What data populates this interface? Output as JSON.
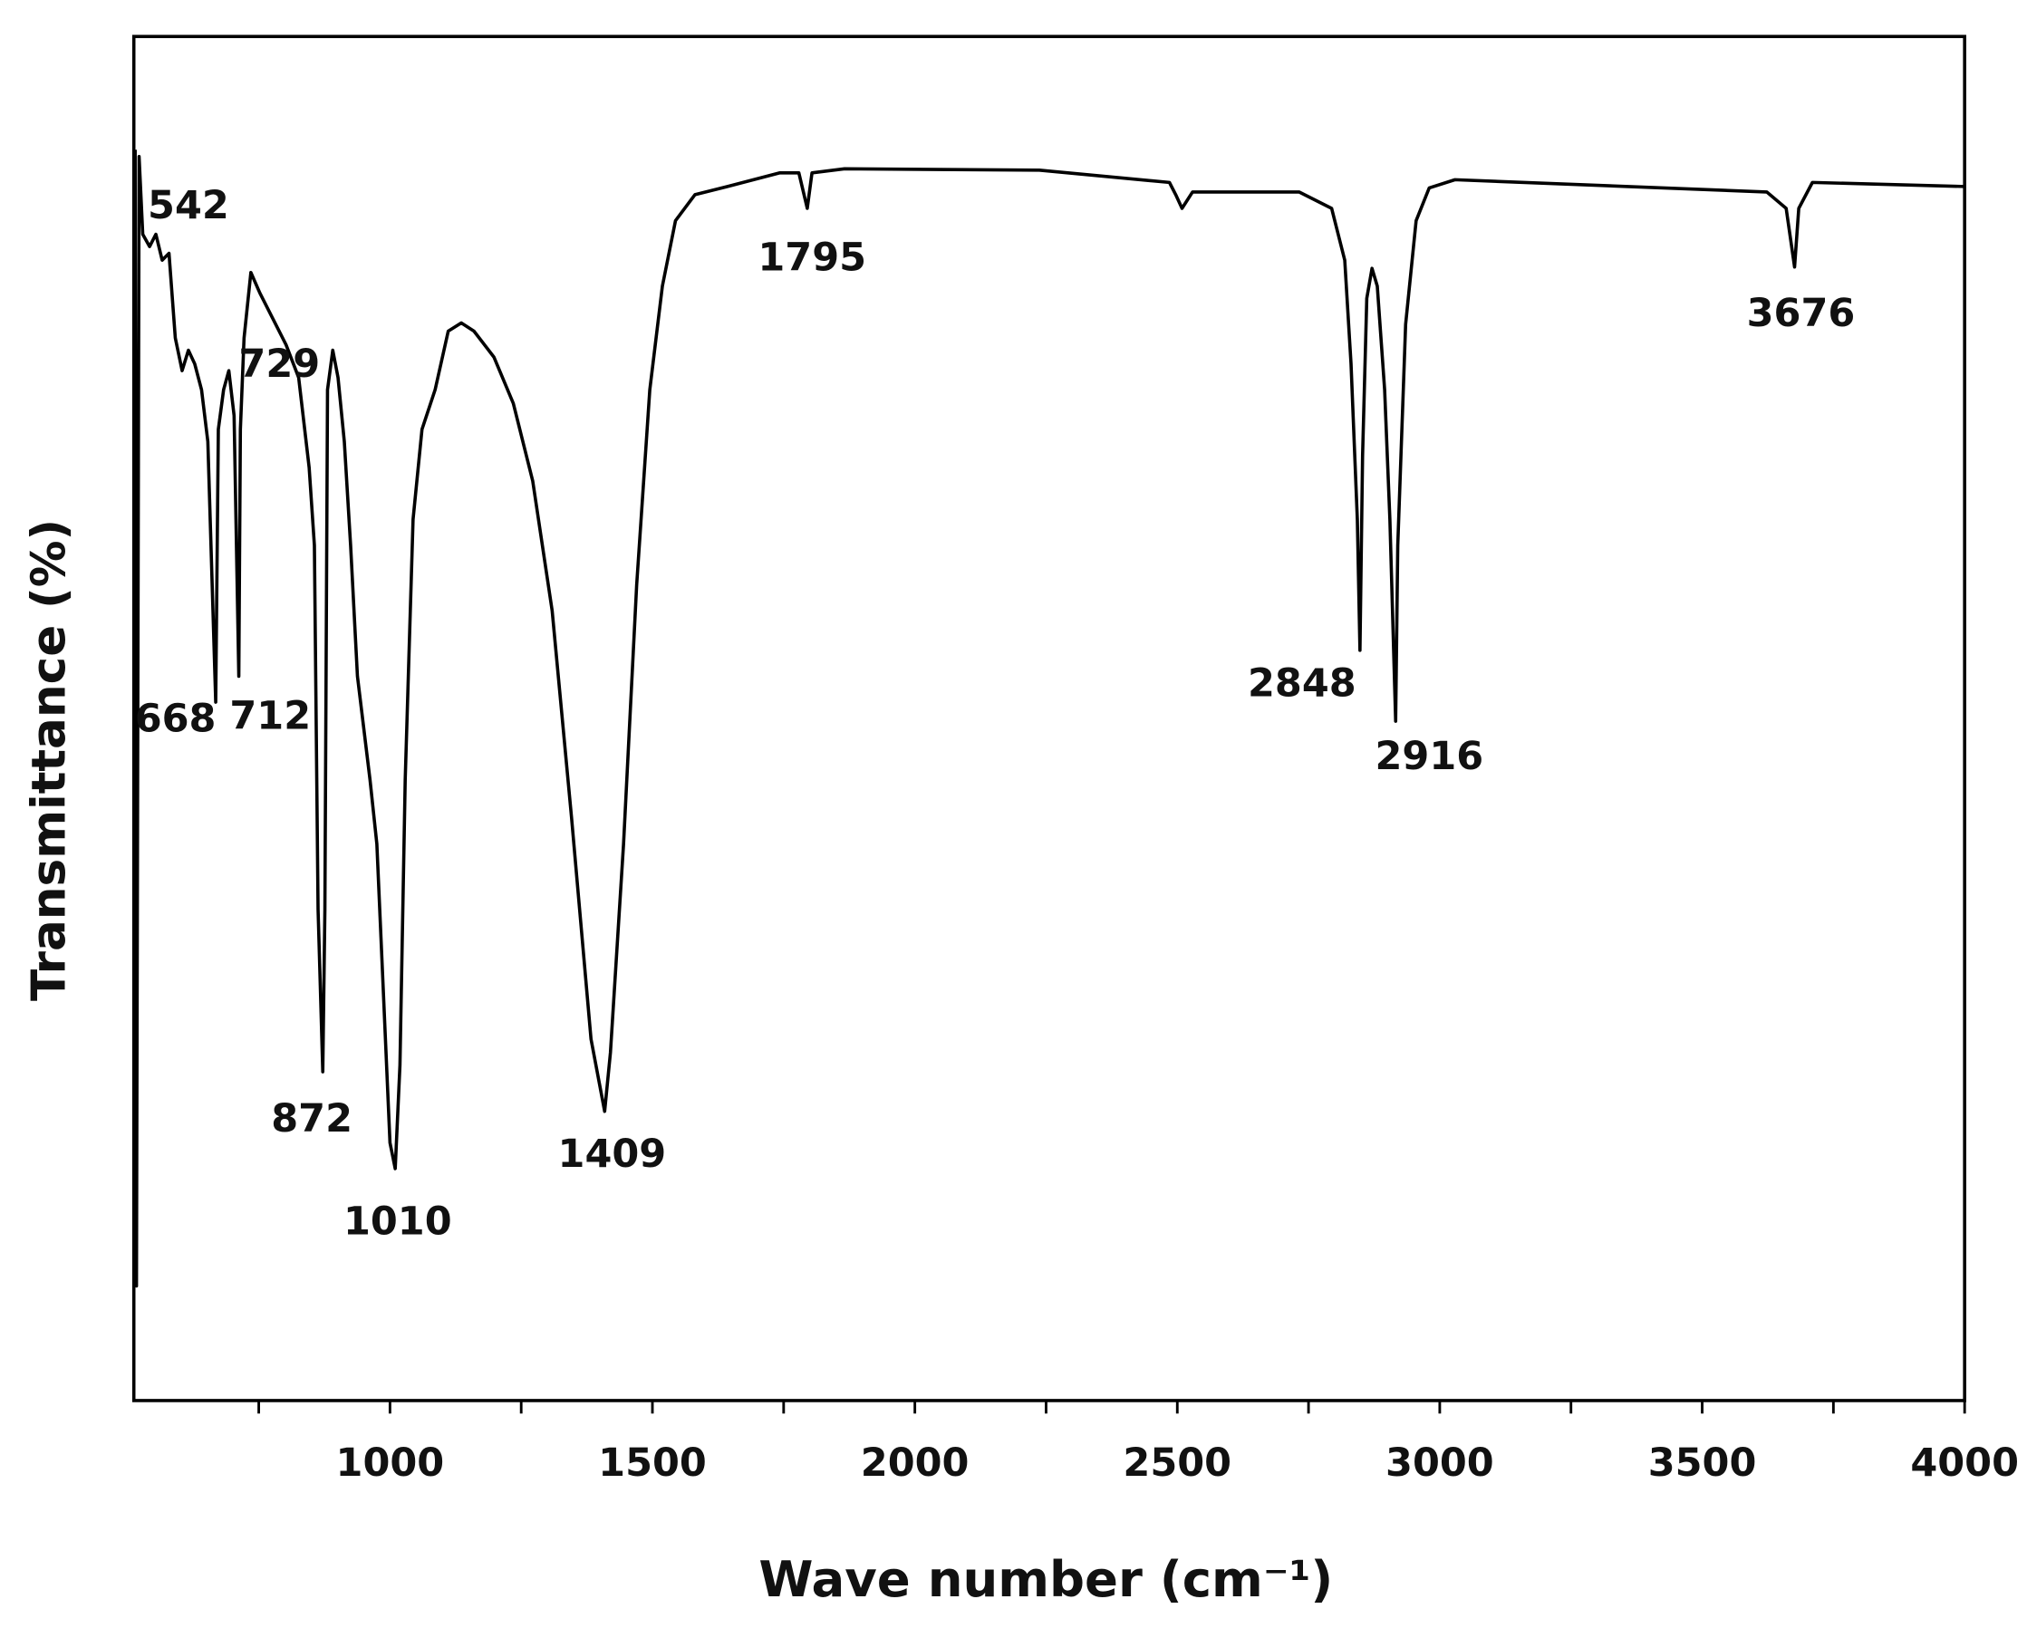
{
  "chart_data": {
    "type": "line",
    "xlabel": "Wave number (cm⁻¹)",
    "ylabel": "Transmittance (%)",
    "xlim": [
      512,
      4000
    ],
    "ylim": [
      0,
      100
    ],
    "xticks": [
      1000,
      1500,
      2000,
      2500,
      3000,
      3500,
      4000
    ],
    "xminorticks": [
      750,
      1250,
      1750,
      2250,
      2750,
      3250,
      3750
    ],
    "color": "#000000",
    "x": [
      514.5,
      517,
      522,
      529,
      542,
      554,
      566,
      579,
      591,
      604,
      616,
      628,
      641,
      653,
      668,
      673,
      683,
      693,
      703,
      712,
      715,
      722,
      735,
      752,
      777,
      802,
      826,
      846,
      856,
      863,
      872,
      876,
      881,
      891,
      901,
      913,
      925,
      938,
      962,
      975,
      987,
      1000,
      1010,
      1019,
      1029,
      1044,
      1061,
      1086,
      1111,
      1136,
      1160,
      1198,
      1235,
      1272,
      1309,
      1346,
      1383,
      1409,
      1420,
      1445,
      1470,
      1495,
      1519,
      1544,
      1581,
      1643,
      1742,
      1779,
      1795,
      1804,
      1866,
      2237,
      2485,
      2497,
      2509,
      2529,
      2732,
      2794,
      2819,
      2831,
      2843,
      2848,
      2853,
      2861,
      2871,
      2881,
      2895,
      2905,
      2916,
      2920,
      2935,
      2955,
      2980,
      3029,
      3623,
      3660,
      3676,
      3684,
      3710,
      4000
    ],
    "values": [
      91.7,
      8.4,
      91.2,
      85.5,
      84.6,
      85.5,
      83.6,
      84.1,
      77.9,
      75.5,
      77.0,
      76.0,
      74.1,
      70.3,
      51.2,
      71.2,
      74.1,
      75.5,
      72.2,
      53.1,
      71.2,
      77.9,
      82.7,
      81.2,
      79.3,
      77.4,
      75.0,
      68.4,
      62.7,
      36.0,
      24.1,
      36.0,
      74.1,
      77.0,
      75.0,
      70.3,
      62.7,
      53.1,
      45.5,
      40.8,
      30.3,
      18.9,
      17.0,
      24.6,
      45.5,
      64.6,
      71.2,
      74.1,
      78.4,
      79.0,
      78.4,
      76.5,
      73.1,
      67.4,
      57.9,
      42.7,
      26.5,
      21.2,
      25.5,
      40.8,
      59.8,
      74.1,
      81.7,
      86.5,
      88.4,
      89.0,
      90.0,
      90.0,
      87.4,
      90.0,
      90.3,
      90.2,
      89.3,
      88.4,
      87.4,
      88.6,
      88.6,
      87.4,
      83.6,
      76.0,
      64.6,
      55.0,
      69.3,
      80.8,
      83.0,
      81.7,
      74.1,
      64.6,
      49.8,
      62.7,
      78.9,
      86.5,
      88.9,
      89.5,
      88.6,
      87.4,
      83.1,
      87.4,
      89.3,
      89.0
    ],
    "annotations": [
      "542",
      "729",
      "668",
      "712",
      "872",
      "1010",
      "1409",
      "1795",
      "2848",
      "2916",
      "3676"
    ]
  }
}
